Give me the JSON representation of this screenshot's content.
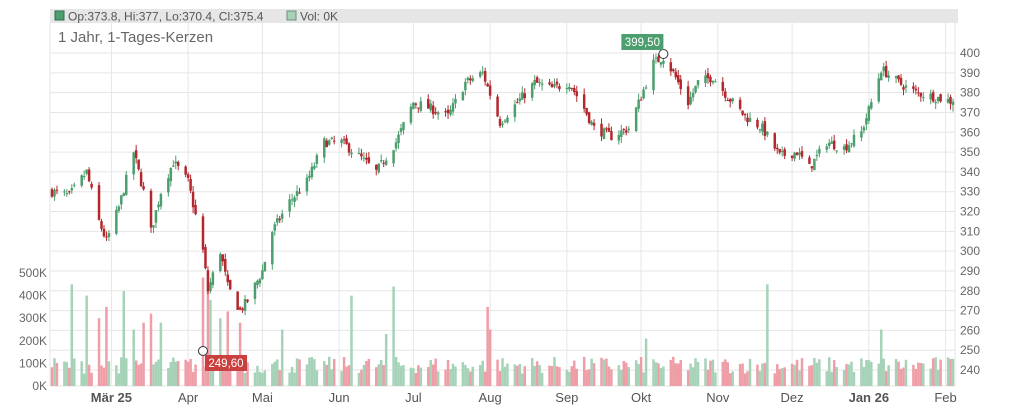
{
  "legend": {
    "ohlc_text": "Op:373.8, Hi:377, Lo:370.4, Cl:375.4",
    "vol_text": "Vol: 0K"
  },
  "title": "1 Jahr, 1-Tages-Kerzen",
  "colors": {
    "up": "#4c9e6f",
    "down": "#b3272d",
    "vol_up": "#a6d2b8",
    "vol_down": "#ef9ea7",
    "legend_bg": "#e6e6e6",
    "grid": "#e6e6e6",
    "high_label_bg": "#4c9e6f",
    "low_label_bg": "#c9403f"
  },
  "chart_data": {
    "type": "candlestick",
    "title": "1 Jahr, 1-Tages-Kerzen",
    "price_axis": {
      "position": "right",
      "ylim": [
        232,
        412
      ],
      "ticks": [
        240,
        250,
        260,
        270,
        280,
        290,
        300,
        310,
        320,
        330,
        340,
        350,
        360,
        370,
        380,
        390,
        400
      ]
    },
    "volume_axis": {
      "position": "left",
      "ylim": [
        0,
        550000
      ],
      "ticks": [
        0,
        100000,
        200000,
        300000,
        400000,
        500000
      ],
      "tick_labels": [
        "0K",
        "100K",
        "200K",
        "300K",
        "400K",
        "500K"
      ]
    },
    "x_axis": {
      "start": "2025-02-05",
      "end": "2026-02-04",
      "month_labels": [
        {
          "label": "Mär 25",
          "date": "2025-03-01",
          "bold": true
        },
        {
          "label": "Apr",
          "date": "2025-04-01",
          "bold": false
        },
        {
          "label": "Mai",
          "date": "2025-05-01",
          "bold": false
        },
        {
          "label": "Jun",
          "date": "2025-06-01",
          "bold": false
        },
        {
          "label": "Jul",
          "date": "2025-07-01",
          "bold": false
        },
        {
          "label": "Aug",
          "date": "2025-08-01",
          "bold": false
        },
        {
          "label": "Sep",
          "date": "2025-09-01",
          "bold": false
        },
        {
          "label": "Okt",
          "date": "2025-10-01",
          "bold": false
        },
        {
          "label": "Nov",
          "date": "2025-11-01",
          "bold": false
        },
        {
          "label": "Dez",
          "date": "2025-12-01",
          "bold": false
        },
        {
          "label": "Jan 26",
          "date": "2026-01-01",
          "bold": true
        },
        {
          "label": "Feb",
          "date": "2026-02-01",
          "bold": false
        }
      ]
    },
    "grid": true,
    "close_anchors": [
      [
        "2025-02-05",
        330
      ],
      [
        "2025-02-12",
        328
      ],
      [
        "2025-02-19",
        340
      ],
      [
        "2025-02-24",
        315
      ],
      [
        "2025-02-27",
        305
      ],
      [
        "2025-03-04",
        322
      ],
      [
        "2025-03-10",
        350
      ],
      [
        "2025-03-14",
        330
      ],
      [
        "2025-03-17",
        310
      ],
      [
        "2025-03-21",
        330
      ],
      [
        "2025-03-26",
        345
      ],
      [
        "2025-04-01",
        335
      ],
      [
        "2025-04-04",
        318
      ],
      [
        "2025-04-07",
        300
      ],
      [
        "2025-04-09",
        280
      ],
      [
        "2025-04-14",
        300
      ],
      [
        "2025-04-17",
        282
      ],
      [
        "2025-04-22",
        270
      ],
      [
        "2025-04-25",
        275
      ],
      [
        "2025-05-01",
        290
      ],
      [
        "2025-05-05",
        310
      ],
      [
        "2025-05-12",
        325
      ],
      [
        "2025-05-19",
        335
      ],
      [
        "2025-05-26",
        355
      ],
      [
        "2025-06-02",
        355
      ],
      [
        "2025-06-09",
        348
      ],
      [
        "2025-06-16",
        340
      ],
      [
        "2025-06-24",
        355
      ],
      [
        "2025-07-01",
        375
      ],
      [
        "2025-07-08",
        372
      ],
      [
        "2025-07-15",
        368
      ],
      [
        "2025-07-22",
        385
      ],
      [
        "2025-07-29",
        390
      ],
      [
        "2025-08-05",
        365
      ],
      [
        "2025-08-12",
        375
      ],
      [
        "2025-08-19",
        385
      ],
      [
        "2025-08-26",
        382
      ],
      [
        "2025-09-02",
        385
      ],
      [
        "2025-09-08",
        372
      ],
      [
        "2025-09-12",
        362
      ],
      [
        "2025-09-19",
        358
      ],
      [
        "2025-09-26",
        362
      ],
      [
        "2025-10-01",
        378
      ],
      [
        "2025-10-06",
        395
      ],
      [
        "2025-10-10",
        398
      ],
      [
        "2025-10-14",
        390
      ],
      [
        "2025-10-20",
        375
      ],
      [
        "2025-10-24",
        385
      ],
      [
        "2025-10-30",
        388
      ],
      [
        "2025-11-05",
        378
      ],
      [
        "2025-11-12",
        368
      ],
      [
        "2025-11-19",
        362
      ],
      [
        "2025-11-26",
        348
      ],
      [
        "2025-12-03",
        350
      ],
      [
        "2025-12-08",
        342
      ],
      [
        "2025-12-15",
        355
      ],
      [
        "2025-12-22",
        352
      ],
      [
        "2025-12-29",
        360
      ],
      [
        "2026-01-02",
        375
      ],
      [
        "2026-01-06",
        392
      ],
      [
        "2026-01-13",
        385
      ],
      [
        "2026-01-20",
        380
      ],
      [
        "2026-01-27",
        378
      ],
      [
        "2026-02-04",
        375.4
      ]
    ],
    "volume_typical": 100000,
    "volume_spikes": [
      [
        "2025-02-13",
        450000
      ],
      [
        "2025-02-19",
        400000
      ],
      [
        "2025-02-24",
        300000
      ],
      [
        "2025-02-27",
        350000
      ],
      [
        "2025-03-06",
        420000
      ],
      [
        "2025-03-10",
        250000
      ],
      [
        "2025-03-14",
        280000
      ],
      [
        "2025-03-17",
        320000
      ],
      [
        "2025-03-21",
        280000
      ],
      [
        "2025-04-07",
        480000
      ],
      [
        "2025-04-09",
        420000
      ],
      [
        "2025-04-10",
        380000
      ],
      [
        "2025-04-14",
        300000
      ],
      [
        "2025-04-17",
        330000
      ],
      [
        "2025-04-22",
        280000
      ],
      [
        "2025-05-09",
        250000
      ],
      [
        "2025-06-06",
        400000
      ],
      [
        "2025-06-20",
        230000
      ],
      [
        "2025-06-23",
        440000
      ],
      [
        "2025-07-31",
        350000
      ],
      [
        "2025-08-01",
        250000
      ],
      [
        "2025-10-03",
        210000
      ],
      [
        "2025-11-21",
        450000
      ],
      [
        "2026-01-06",
        250000
      ]
    ],
    "high_marker": {
      "label": "399,50",
      "date": "2025-10-10",
      "value": 399.5
    },
    "low_marker": {
      "label": "249,60",
      "date": "2025-04-07",
      "value": 249.6
    },
    "last_candle": {
      "open": 373.8,
      "high": 377,
      "low": 370.4,
      "close": 375.4,
      "volume": 0
    }
  }
}
